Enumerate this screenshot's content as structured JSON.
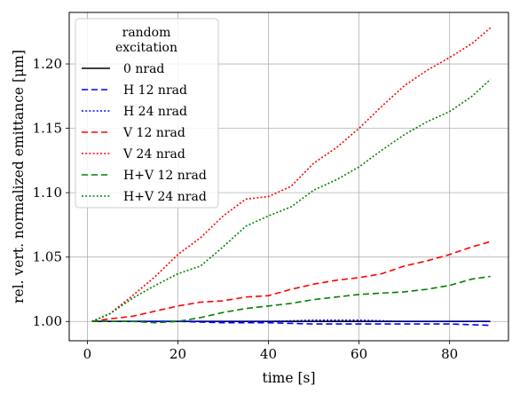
{
  "chart_data": {
    "type": "line",
    "xlabel": "time [s]",
    "ylabel": "rel. vert. normalized emittance [μm]",
    "xlim": [
      -4,
      93
    ],
    "ylim": [
      0.985,
      1.24
    ],
    "xticks": [
      0,
      20,
      40,
      60,
      80
    ],
    "yticks": [
      1.0,
      1.05,
      1.1,
      1.15,
      1.2
    ],
    "xtick_labels": [
      "0",
      "20",
      "40",
      "60",
      "80"
    ],
    "ytick_labels": [
      "1.00",
      "1.05",
      "1.10",
      "1.15",
      "1.20"
    ],
    "grid": true,
    "legend": {
      "title_line1": "random",
      "title_line2": "excitation",
      "placement": "top-left"
    },
    "series": [
      {
        "name": "0 nrad",
        "color": "#000000",
        "dash": "solid",
        "x": [
          1,
          10,
          20,
          30,
          40,
          50,
          60,
          70,
          80,
          89
        ],
        "y": [
          1.0,
          1.0,
          1.0,
          1.0,
          1.0,
          1.0,
          1.0,
          1.0,
          1.0,
          1.0
        ]
      },
      {
        "name": "H 12 nrad",
        "color": "#0000ff",
        "dash": "dashed",
        "x": [
          1,
          10,
          20,
          30,
          40,
          50,
          60,
          70,
          80,
          89
        ],
        "y": [
          1.0,
          1.0,
          1.0,
          0.999,
          0.999,
          0.998,
          0.998,
          0.998,
          0.998,
          0.997
        ]
      },
      {
        "name": "H 24 nrad",
        "color": "#0000ff",
        "dash": "dotted",
        "x": [
          1,
          10,
          20,
          30,
          40,
          50,
          60,
          70,
          80,
          89
        ],
        "y": [
          1.0,
          1.0,
          1.0,
          1.0,
          1.0,
          1.001,
          1.001,
          1.0,
          1.0,
          1.0
        ]
      },
      {
        "name": "V 12 nrad",
        "color": "#ff0000",
        "dash": "dashed",
        "x": [
          1,
          5,
          10,
          15,
          20,
          25,
          30,
          35,
          40,
          45,
          50,
          55,
          60,
          65,
          70,
          75,
          80,
          85,
          89
        ],
        "y": [
          1.0,
          1.002,
          1.004,
          1.008,
          1.012,
          1.015,
          1.016,
          1.019,
          1.02,
          1.025,
          1.029,
          1.032,
          1.034,
          1.037,
          1.043,
          1.047,
          1.052,
          1.058,
          1.062
        ]
      },
      {
        "name": "V 24 nrad",
        "color": "#ff0000",
        "dash": "dotted",
        "x": [
          1,
          5,
          10,
          15,
          20,
          25,
          30,
          35,
          40,
          45,
          50,
          55,
          60,
          65,
          70,
          75,
          80,
          85,
          89
        ],
        "y": [
          1.0,
          1.006,
          1.02,
          1.035,
          1.052,
          1.065,
          1.082,
          1.095,
          1.097,
          1.105,
          1.123,
          1.135,
          1.15,
          1.167,
          1.183,
          1.195,
          1.205,
          1.216,
          1.228
        ]
      },
      {
        "name": "H+V 12 nrad",
        "color": "#008000",
        "dash": "dashed",
        "x": [
          1,
          5,
          10,
          15,
          20,
          25,
          30,
          35,
          40,
          45,
          50,
          55,
          60,
          65,
          70,
          75,
          80,
          85,
          89
        ],
        "y": [
          1.0,
          1.0,
          1.0,
          0.999,
          1.0,
          1.003,
          1.007,
          1.01,
          1.012,
          1.014,
          1.017,
          1.019,
          1.021,
          1.022,
          1.023,
          1.025,
          1.028,
          1.033,
          1.035
        ]
      },
      {
        "name": "H+V 24 nrad",
        "color": "#008000",
        "dash": "dotted",
        "x": [
          1,
          5,
          10,
          15,
          20,
          25,
          30,
          35,
          40,
          45,
          50,
          55,
          60,
          65,
          70,
          75,
          80,
          85,
          89
        ],
        "y": [
          1.0,
          1.006,
          1.018,
          1.028,
          1.037,
          1.043,
          1.058,
          1.074,
          1.082,
          1.089,
          1.102,
          1.11,
          1.12,
          1.133,
          1.145,
          1.155,
          1.163,
          1.175,
          1.188
        ]
      }
    ]
  }
}
